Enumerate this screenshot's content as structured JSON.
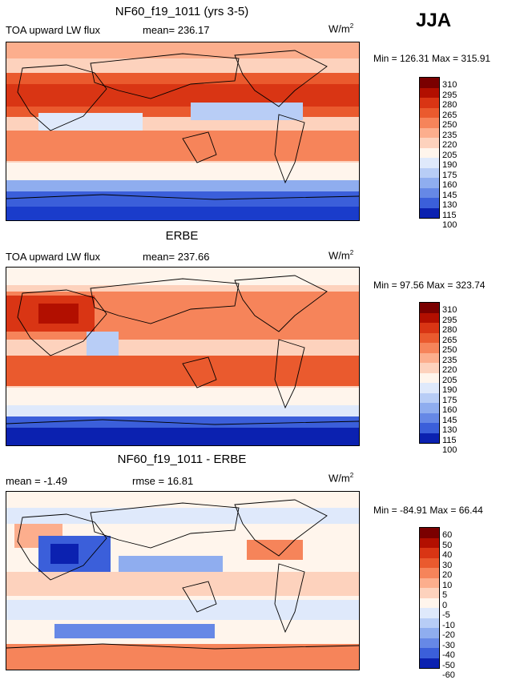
{
  "season": "JJA",
  "panels": [
    {
      "id": "model",
      "title": "NF60_f19_1011 (yrs 3-5)",
      "field_label": "TOA upward LW flux",
      "stat_label": "mean= 236.17",
      "units": "W/m",
      "units_exp": "2",
      "minmax": "Min = 126.31  Max = 315.91",
      "levels": [
        "310",
        "295",
        "280",
        "265",
        "250",
        "235",
        "220",
        "205",
        "190",
        "175",
        "160",
        "145",
        "130",
        "115",
        "100"
      ]
    },
    {
      "id": "obs",
      "title": "ERBE",
      "field_label": "TOA upward LW flux",
      "stat_label": "mean= 237.66",
      "units": "W/m",
      "units_exp": "2",
      "minmax": "Min =  97.56  Max = 323.74",
      "levels": [
        "310",
        "295",
        "280",
        "265",
        "250",
        "235",
        "220",
        "205",
        "190",
        "175",
        "160",
        "145",
        "130",
        "115",
        "100"
      ]
    },
    {
      "id": "diff",
      "title": "NF60_f19_1011 - ERBE",
      "field_label": "mean =  -1.49",
      "stat_label": "rmse =  16.81",
      "units": "W/m",
      "units_exp": "2",
      "minmax": "Min = -84.91  Max =  66.44",
      "levels": [
        "60",
        "50",
        "40",
        "30",
        "20",
        "10",
        "5",
        "0",
        "-5",
        "-10",
        "-20",
        "-30",
        "-40",
        "-50",
        "-60"
      ]
    }
  ],
  "colors": {
    "palette": [
      "#7a0000",
      "#b20f00",
      "#d93514",
      "#ea5a2e",
      "#f6845a",
      "#fcae8d",
      "#fdd2bd",
      "#fff5ec",
      "#dfe9fb",
      "#b8cdf6",
      "#8fadef",
      "#6688e6",
      "#3b5fda",
      "#1a3ccb",
      "#0b21b0",
      "#000c80"
    ]
  }
}
